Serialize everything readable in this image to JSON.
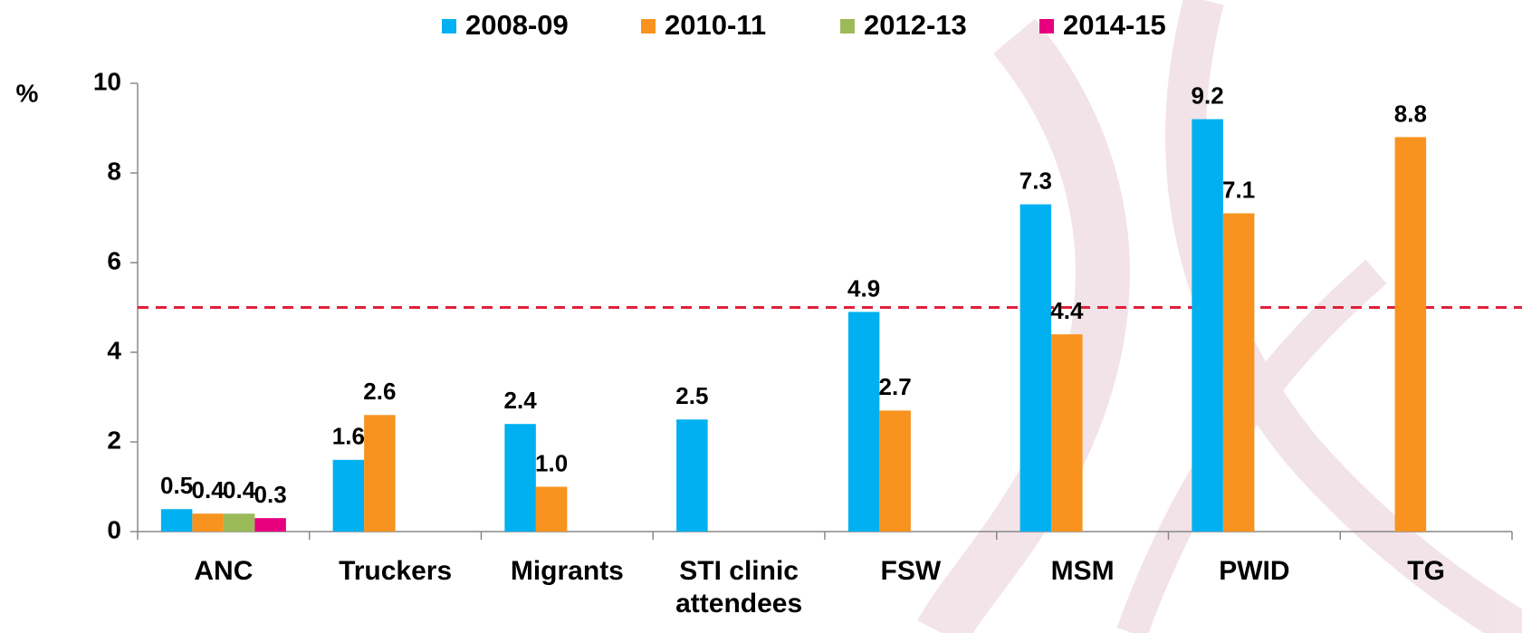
{
  "chart_data": {
    "type": "bar",
    "y_label": "%",
    "categories": [
      "ANC",
      "Truckers",
      "Migrants",
      "STI clinic\nattendees",
      "FSW",
      "MSM",
      "PWID",
      "TG"
    ],
    "series": [
      {
        "name": "2008-09",
        "color": "#00b0f0",
        "values": [
          0.5,
          1.6,
          2.4,
          2.5,
          4.9,
          7.3,
          9.2,
          null
        ]
      },
      {
        "name": "2010-11",
        "color": "#f7931e",
        "values": [
          0.4,
          2.6,
          1.0,
          null,
          2.7,
          4.4,
          7.1,
          8.8
        ],
        "value_labels": [
          "0.4",
          "2.6",
          "1.0",
          null,
          "2.7",
          "4.4",
          "7.1",
          "8.8"
        ]
      },
      {
        "name": "2012-13",
        "color": "#9bbb59",
        "values": [
          0.4,
          null,
          null,
          null,
          null,
          null,
          null,
          null
        ]
      },
      {
        "name": "2014-15",
        "color": "#e6007e",
        "values": [
          0.3,
          null,
          null,
          null,
          null,
          null,
          null,
          null
        ]
      }
    ],
    "ylim": [
      0,
      10
    ],
    "yticks": [
      0,
      2,
      4,
      6,
      8,
      10
    ],
    "reference_line": {
      "value": 5,
      "color": "#e0203a"
    },
    "legend": "top"
  }
}
